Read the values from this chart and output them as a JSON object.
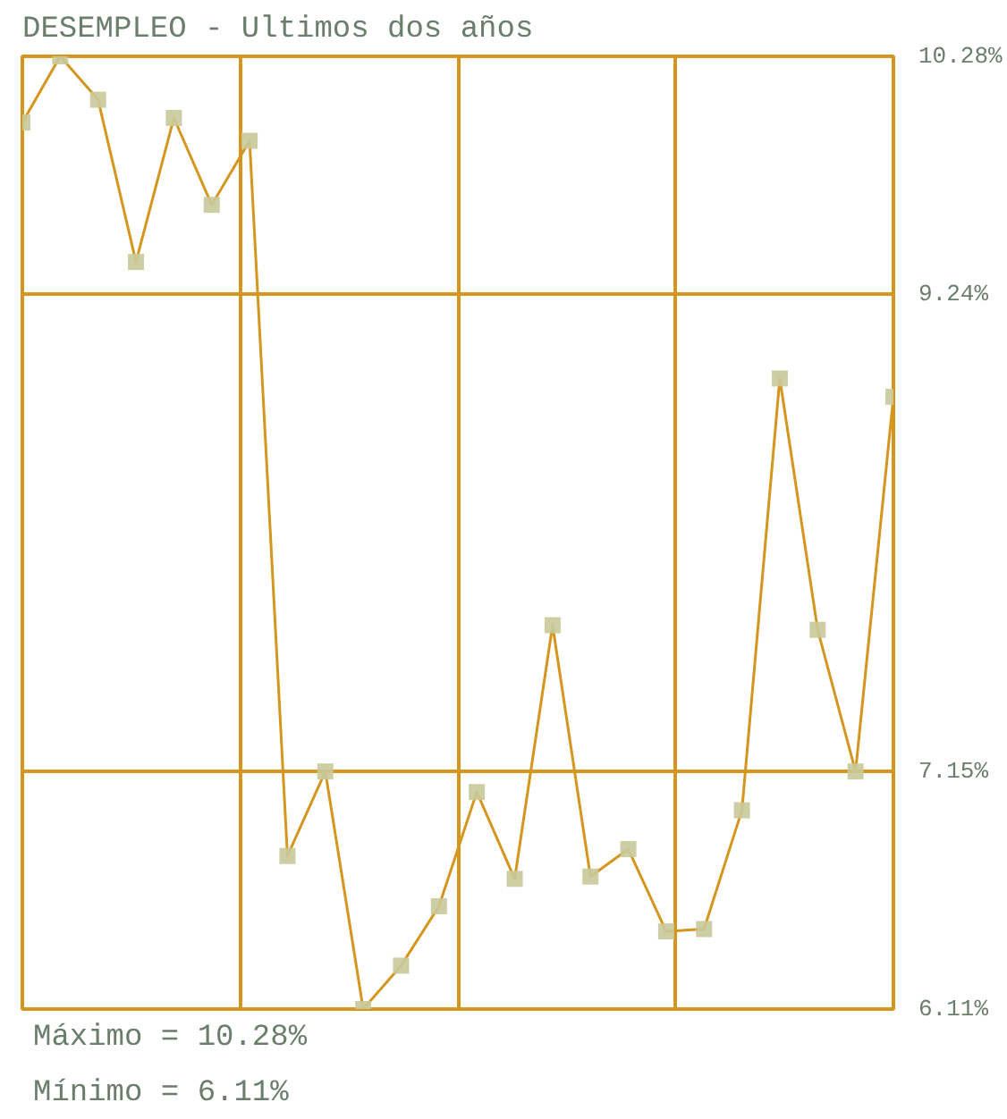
{
  "chart_data": {
    "type": "line",
    "title": "DESEMPLEO - Ultimos dos años",
    "categories": [
      null,
      null,
      null,
      null,
      null,
      null,
      null,
      null,
      null,
      null,
      null,
      null,
      null,
      null,
      null,
      null,
      null,
      null,
      null,
      null,
      null,
      null,
      null,
      null
    ],
    "series": [
      {
        "color": "#d4961e",
        "values": [
          9.99,
          10.28,
          10.09,
          9.38,
          10.01,
          9.63,
          9.91,
          6.78,
          7.15,
          6.11,
          6.3,
          6.56,
          7.06,
          6.68,
          7.79,
          6.69,
          6.81,
          6.45,
          6.46,
          6.98,
          8.87,
          7.77,
          7.15,
          8.79
        ]
      }
    ],
    "ylim": [
      6.11,
      10.28
    ],
    "yticks": [
      {
        "value": 6.11,
        "label": "6.11%"
      },
      {
        "value": 7.15,
        "label": "7.15%"
      },
      {
        "value": 9.24,
        "label": "9.24%"
      },
      {
        "value": 10.28,
        "label": "10.28%"
      }
    ],
    "tick_labels": "y",
    "grid": true,
    "marker": "square",
    "line_style": "solid",
    "annotations": [
      "Máximo = 10.28%",
      "Mínimo = 6.11%"
    ]
  }
}
